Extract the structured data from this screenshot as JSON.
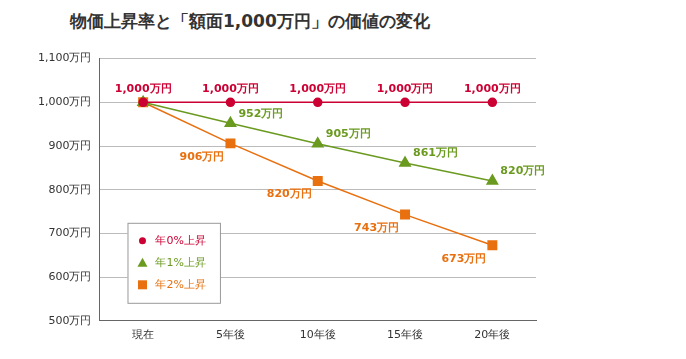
{
  "chart_data": {
    "type": "line",
    "title": "物価上昇率と「額面1,000万円」の価値の変化",
    "categories": [
      "現在",
      "5年後",
      "10年後",
      "15年後",
      "20年後"
    ],
    "series": [
      {
        "name": "年0%上昇",
        "color": "#cc0033",
        "marker": "circle",
        "line_style": "solid",
        "values": [
          1000,
          1000,
          1000,
          1000,
          1000
        ],
        "value_labels": [
          "1,000万円",
          "1,000万円",
          "1,000万円",
          "1,000万円",
          "1,000万円"
        ]
      },
      {
        "name": "年1%上昇",
        "color": "#6a9a1f",
        "marker": "triangle",
        "line_style": "solid",
        "values": [
          1000,
          952,
          905,
          861,
          820
        ],
        "value_labels": [
          null,
          "952万円",
          "905万円",
          "861万円",
          "820万円"
        ]
      },
      {
        "name": "年2%上昇",
        "color": "#e8700f",
        "marker": "square",
        "line_style": "solid",
        "values": [
          1000,
          906,
          820,
          743,
          673
        ],
        "value_labels": [
          null,
          "906万円",
          "820万円",
          "743万円",
          "673万円"
        ]
      }
    ],
    "ylim": [
      500,
      1100
    ],
    "yticks": [
      {
        "value": 500,
        "label": "500万円"
      },
      {
        "value": 600,
        "label": "600万円"
      },
      {
        "value": 700,
        "label": "700万円"
      },
      {
        "value": 800,
        "label": "800万円"
      },
      {
        "value": 900,
        "label": "900万円"
      },
      {
        "value": 1000,
        "label": "1,000万円"
      },
      {
        "value": 1100,
        "label": "1,100万円"
      }
    ],
    "grid": true,
    "legend": "lower left",
    "data_labels": true
  }
}
